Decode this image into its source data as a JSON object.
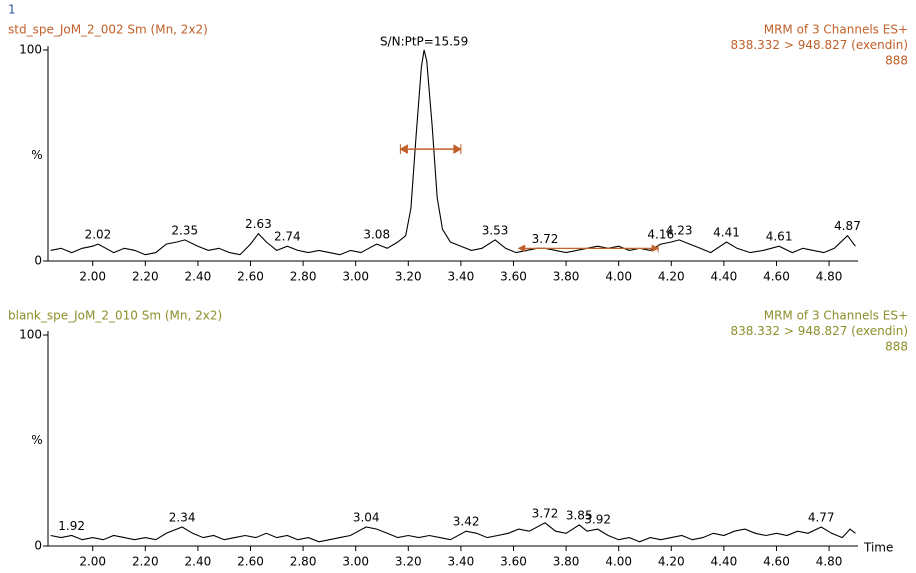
{
  "page_number": "1",
  "chart_data": [
    {
      "type": "line",
      "title": "std_spe_JoM_2_002 Sm (Mn, 2x2)",
      "header_lines": [
        "MRM of 3 Channels ES+",
        "838.332 > 948.827 (exendin)",
        "888"
      ],
      "text_color": "#c0602a",
      "ylabel": "%",
      "xlim": [
        1.83,
        4.91
      ],
      "ylim": [
        0,
        100
      ],
      "yticks": [
        0,
        100
      ],
      "xticks": [
        {
          "value": 2.0,
          "label": "2.00"
        },
        {
          "value": 2.2,
          "label": "2.20"
        },
        {
          "value": 2.4,
          "label": "2.40"
        },
        {
          "value": 2.6,
          "label": "2.60"
        },
        {
          "value": 2.8,
          "label": "2.80"
        },
        {
          "value": 3.0,
          "label": "3.00"
        },
        {
          "value": 3.2,
          "label": "3.20"
        },
        {
          "value": 3.4,
          "label": "3.40"
        },
        {
          "value": 3.6,
          "label": "3.60"
        },
        {
          "value": 3.8,
          "label": "3.80"
        },
        {
          "value": 4.0,
          "label": "4.00"
        },
        {
          "value": 4.2,
          "label": "4.20"
        },
        {
          "value": 4.4,
          "label": "4.40"
        },
        {
          "value": 4.6,
          "label": "4.60"
        },
        {
          "value": 4.8,
          "label": "4.80"
        }
      ],
      "series": [
        {
          "color": "#000000",
          "x": [
            1.84,
            1.88,
            1.92,
            1.96,
            2.0,
            2.02,
            2.05,
            2.08,
            2.12,
            2.16,
            2.2,
            2.24,
            2.28,
            2.32,
            2.35,
            2.4,
            2.44,
            2.48,
            2.52,
            2.56,
            2.6,
            2.63,
            2.66,
            2.7,
            2.74,
            2.78,
            2.82,
            2.86,
            2.9,
            2.94,
            2.98,
            3.02,
            3.05,
            3.08,
            3.12,
            3.16,
            3.19,
            3.21,
            3.23,
            3.25,
            3.26,
            3.27,
            3.29,
            3.31,
            3.33,
            3.36,
            3.4,
            3.44,
            3.48,
            3.53,
            3.57,
            3.61,
            3.65,
            3.69,
            3.72,
            3.76,
            3.8,
            3.84,
            3.88,
            3.92,
            3.96,
            4.0,
            4.04,
            4.08,
            4.12,
            4.16,
            4.2,
            4.23,
            4.27,
            4.31,
            4.35,
            4.41,
            4.45,
            4.5,
            4.55,
            4.61,
            4.66,
            4.7,
            4.74,
            4.78,
            4.82,
            4.87,
            4.9
          ],
          "values": [
            5,
            6,
            4,
            6,
            7,
            8,
            6,
            4,
            6,
            5,
            3,
            4,
            8,
            9,
            10,
            7,
            5,
            6,
            4,
            3,
            8,
            13,
            9,
            5,
            7,
            5,
            4,
            5,
            4,
            3,
            5,
            4,
            6,
            8,
            6,
            9,
            12,
            25,
            60,
            92,
            100,
            95,
            65,
            30,
            15,
            9,
            7,
            5,
            6,
            10,
            6,
            4,
            5,
            6,
            6,
            5,
            4,
            5,
            6,
            7,
            6,
            7,
            5,
            6,
            5,
            8,
            9,
            10,
            8,
            6,
            4,
            9,
            6,
            4,
            5,
            7,
            4,
            6,
            5,
            4,
            6,
            12,
            7
          ]
        }
      ],
      "peaks": [
        2.02,
        2.35,
        2.63,
        2.74,
        3.08,
        3.53,
        3.72,
        4.16,
        4.23,
        4.41,
        4.61,
        4.87
      ],
      "annotation": "S/N:PtP=15.59",
      "marker_color": "#c0602a",
      "peak_width": {
        "x": [
          3.17,
          3.4
        ],
        "y": 53
      },
      "noise": {
        "x": [
          3.62,
          4.15
        ],
        "y": 6
      }
    },
    {
      "type": "line",
      "title": "blank_spe_JoM_2_010 Sm (Mn, 2x2)",
      "header_lines": [
        "MRM of 3 Channels ES+",
        "838.332 > 948.827 (exendin)",
        "888"
      ],
      "text_color": "#8e8e2c",
      "ylabel": "%",
      "xlabel": "Time",
      "xlim": [
        1.83,
        4.91
      ],
      "ylim": [
        0,
        100
      ],
      "yticks": [
        0,
        100
      ],
      "xticks": [
        {
          "value": 2.0,
          "label": "2.00"
        },
        {
          "value": 2.2,
          "label": "2.20"
        },
        {
          "value": 2.4,
          "label": "2.40"
        },
        {
          "value": 2.6,
          "label": "2.60"
        },
        {
          "value": 2.8,
          "label": "2.80"
        },
        {
          "value": 3.0,
          "label": "3.00"
        },
        {
          "value": 3.2,
          "label": "3.20"
        },
        {
          "value": 3.4,
          "label": "3.40"
        },
        {
          "value": 3.6,
          "label": "3.60"
        },
        {
          "value": 3.8,
          "label": "3.80"
        },
        {
          "value": 4.0,
          "label": "4.00"
        },
        {
          "value": 4.2,
          "label": "4.20"
        },
        {
          "value": 4.4,
          "label": "4.40"
        },
        {
          "value": 4.6,
          "label": "4.60"
        },
        {
          "value": 4.8,
          "label": "4.80"
        }
      ],
      "series": [
        {
          "color": "#000000",
          "x": [
            1.84,
            1.88,
            1.92,
            1.96,
            2.0,
            2.04,
            2.08,
            2.12,
            2.16,
            2.2,
            2.24,
            2.28,
            2.34,
            2.38,
            2.42,
            2.46,
            2.5,
            2.54,
            2.58,
            2.62,
            2.66,
            2.7,
            2.74,
            2.78,
            2.82,
            2.86,
            2.9,
            2.94,
            2.98,
            3.01,
            3.04,
            3.08,
            3.12,
            3.16,
            3.2,
            3.24,
            3.28,
            3.32,
            3.36,
            3.42,
            3.46,
            3.5,
            3.54,
            3.58,
            3.62,
            3.66,
            3.72,
            3.76,
            3.8,
            3.85,
            3.88,
            3.92,
            3.96,
            4.0,
            4.04,
            4.08,
            4.12,
            4.16,
            4.2,
            4.24,
            4.28,
            4.32,
            4.36,
            4.4,
            4.44,
            4.48,
            4.52,
            4.56,
            4.6,
            4.64,
            4.68,
            4.72,
            4.77,
            4.81,
            4.85,
            4.88,
            4.9
          ],
          "values": [
            5,
            4,
            5,
            3,
            4,
            3,
            5,
            4,
            3,
            4,
            3,
            6,
            9,
            6,
            4,
            5,
            3,
            4,
            5,
            4,
            6,
            4,
            5,
            3,
            4,
            2,
            3,
            4,
            5,
            7,
            9,
            8,
            6,
            4,
            5,
            4,
            5,
            4,
            3,
            7,
            6,
            4,
            5,
            6,
            8,
            7,
            11,
            7,
            6,
            10,
            7,
            8,
            5,
            3,
            4,
            2,
            4,
            3,
            4,
            5,
            3,
            4,
            6,
            5,
            7,
            8,
            6,
            5,
            6,
            5,
            7,
            6,
            9,
            6,
            4,
            8,
            6
          ]
        }
      ],
      "peaks": [
        1.92,
        2.34,
        3.04,
        3.42,
        3.72,
        3.85,
        3.92,
        4.77
      ]
    }
  ]
}
